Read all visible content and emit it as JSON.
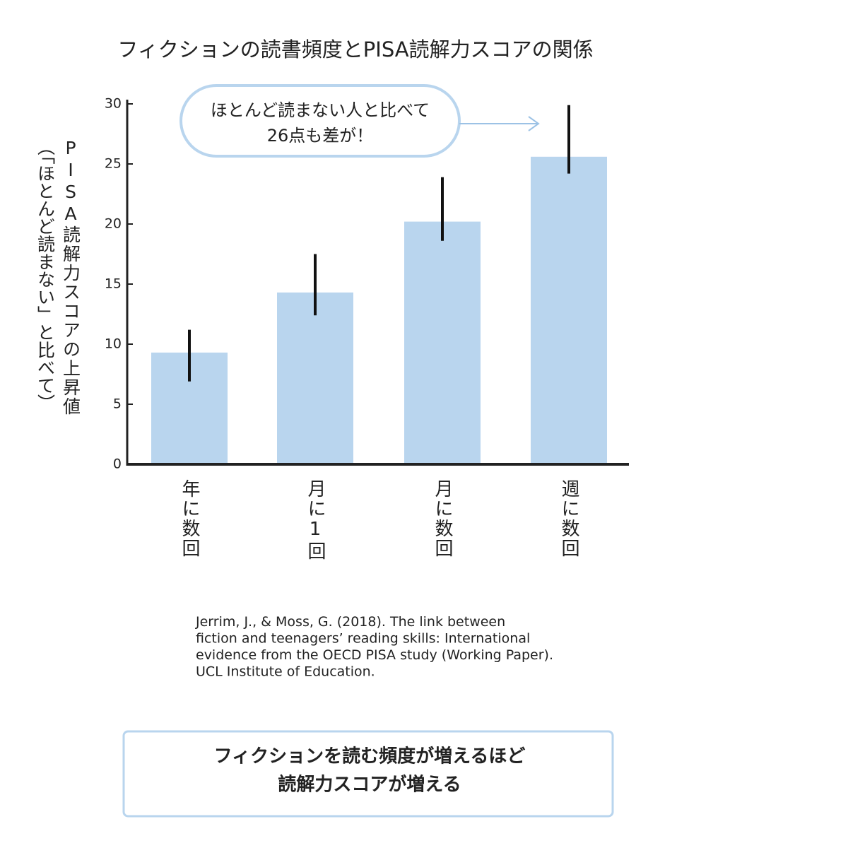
{
  "chart_data": {
    "type": "bar",
    "title": "フィクションの読書頻度とPISA読解力スコアの関係",
    "y_label": [
      "PISA読解力スコアの上昇値",
      "（「ほとんど読まない」と比べて）"
    ],
    "annotation": [
      "ほとんど読まない人と比べて",
      "26点も差が！"
    ],
    "categories": [
      "年に数回",
      "月に1回",
      "月に数回",
      "週に数回"
    ],
    "values": [
      9.3,
      14.3,
      20.2,
      25.6
    ],
    "lower": [
      6.9,
      12.4,
      18.6,
      24.2
    ],
    "upper": [
      11.2,
      17.5,
      23.9,
      29.9
    ],
    "color": "#b9d5ee",
    "error_color": "#111111",
    "ylim": [
      0,
      30
    ],
    "yticks": [
      0,
      5,
      10,
      15,
      20,
      25,
      30
    ]
  },
  "source": [
    "Jerrim, J., & Moss, G. (2018). The link between",
    "fiction and teenagers’ reading skills: International",
    "evidence from the OECD PISA study (Working Paper).",
    "UCL Institute of Education."
  ],
  "conclusion": [
    "フィクションを読む頻度が増えるほど",
    "読解力スコアが増える"
  ]
}
